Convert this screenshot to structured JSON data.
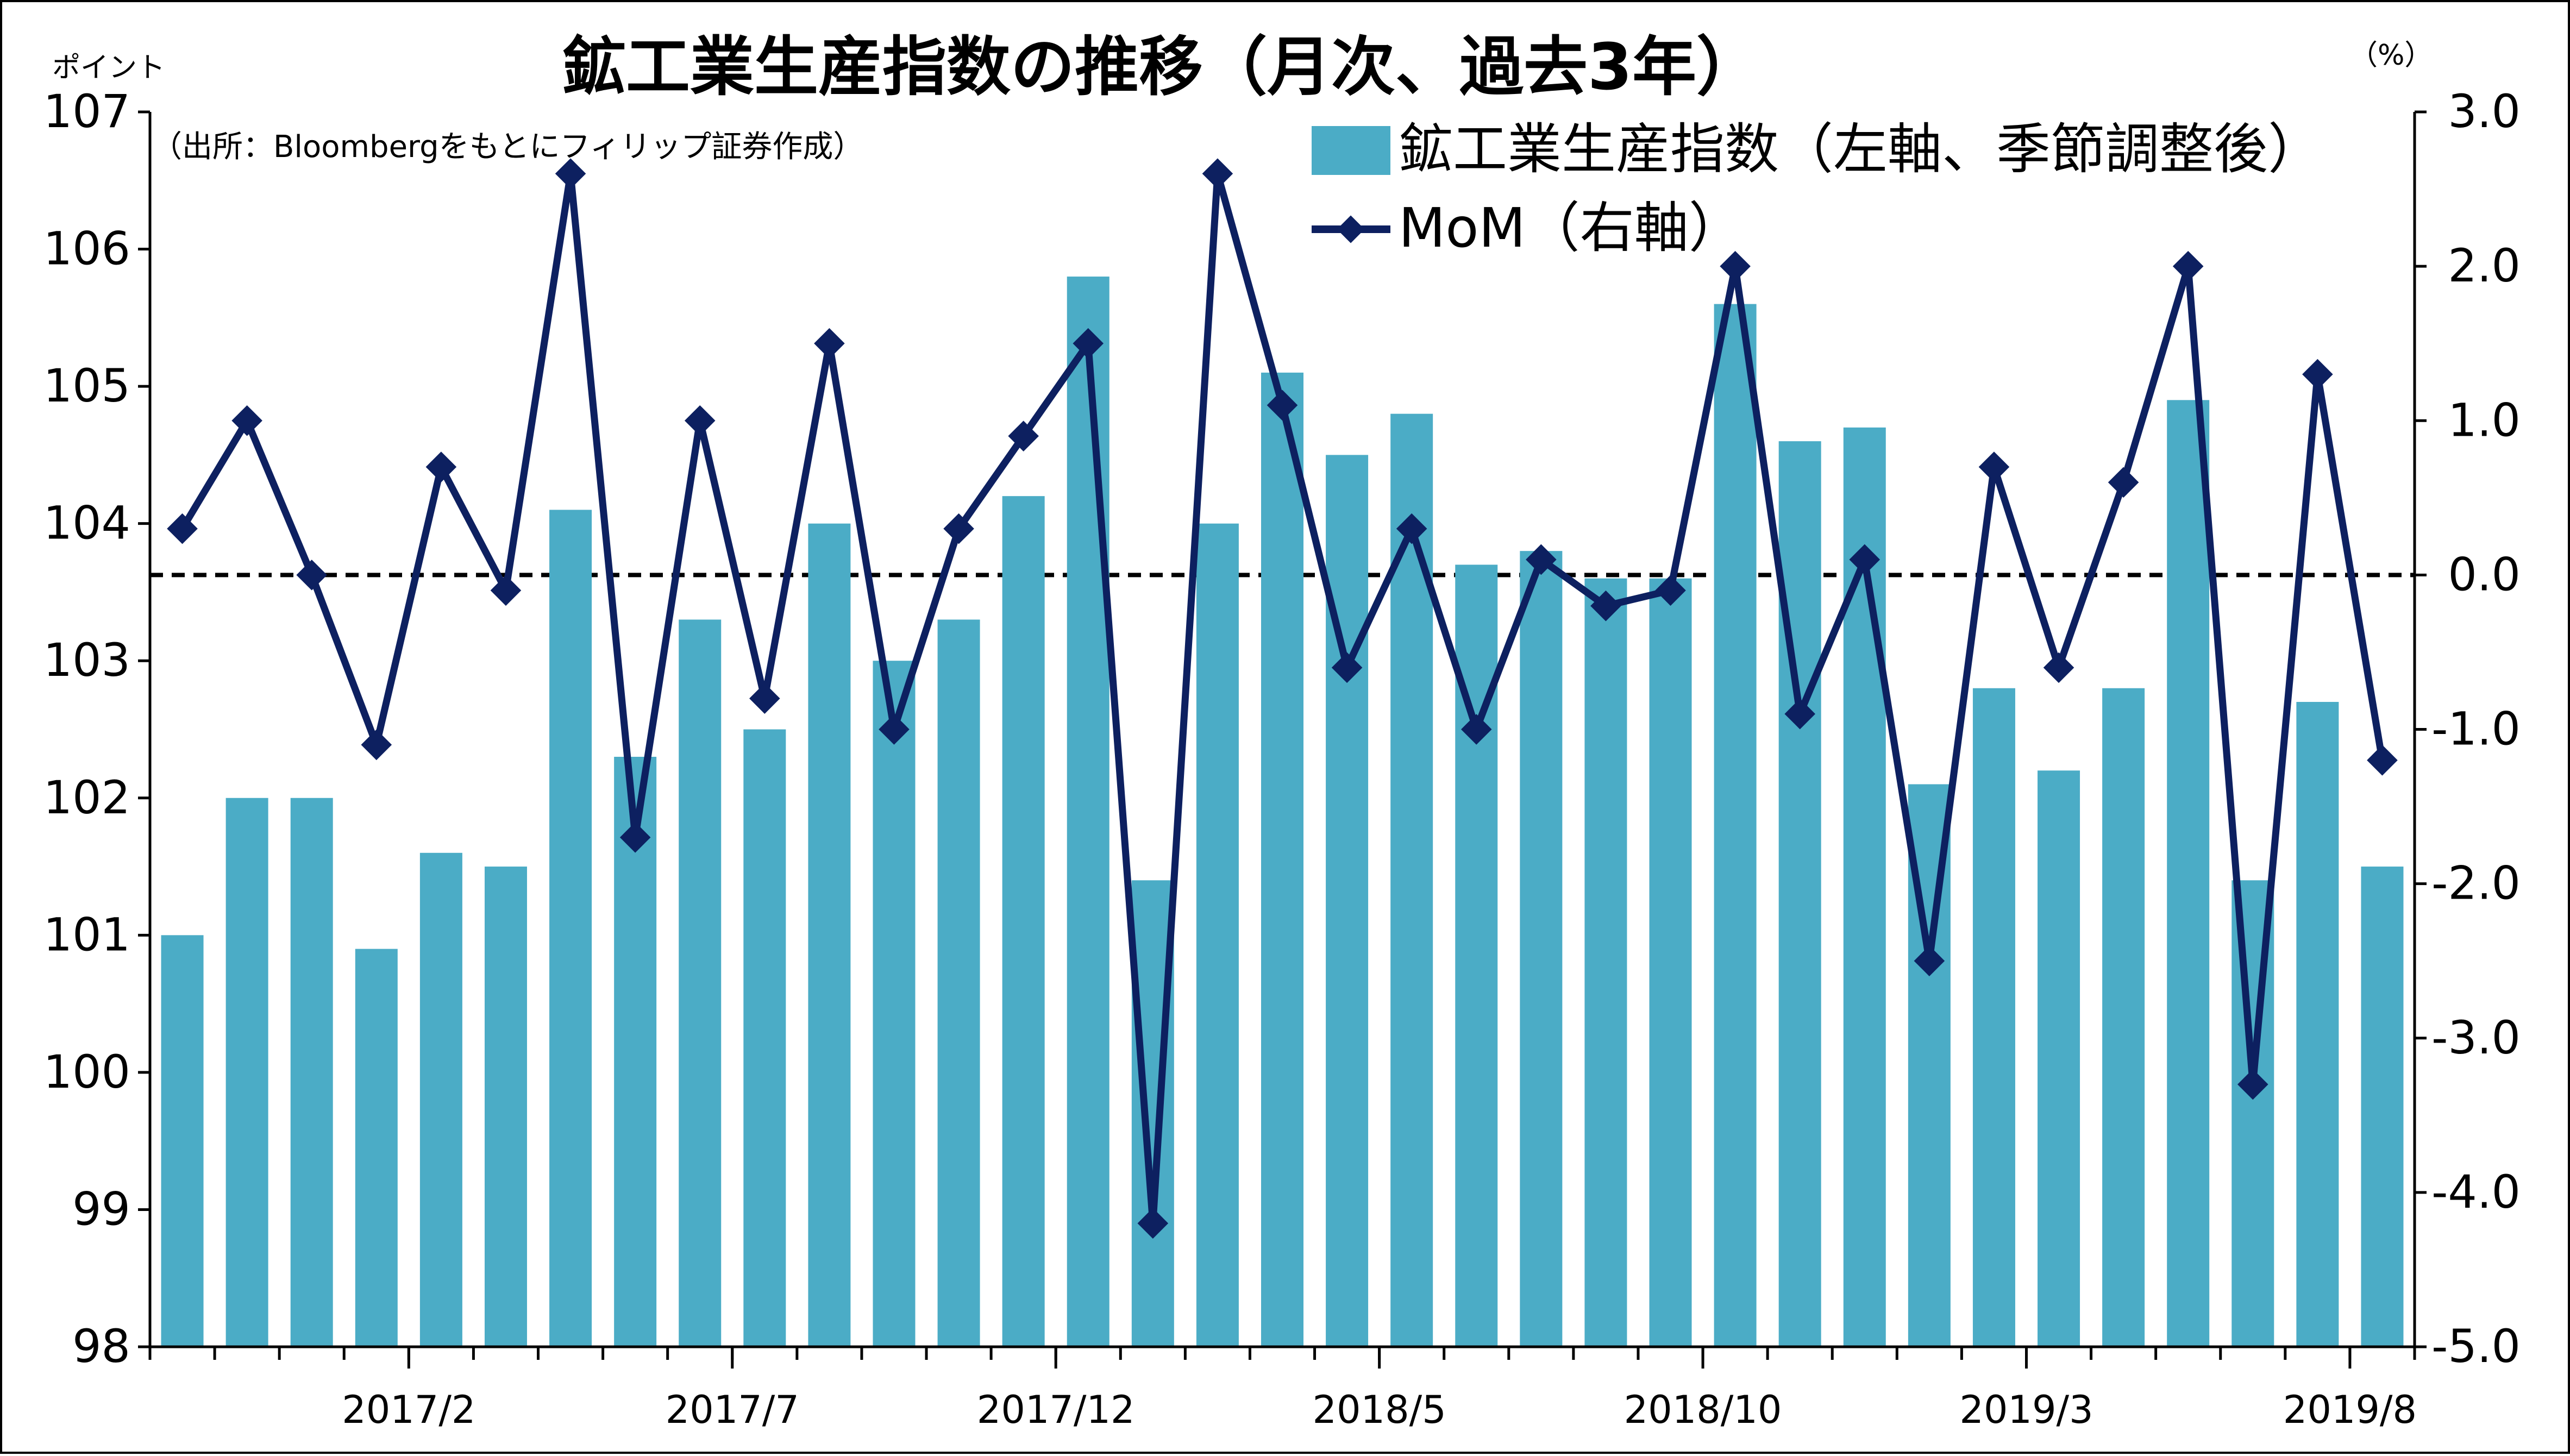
{
  "chart_data": {
    "type": "bar+line",
    "title": "鉱工業生産指数の推移（月次、過去3年）",
    "source_note": "（出所：Bloombergをもとにフィリップ証券作成）",
    "left_axis": {
      "unit_label": "ポイント",
      "ylim": [
        98,
        107
      ],
      "ticks": [
        "98",
        "99",
        "100",
        "101",
        "102",
        "103",
        "104",
        "105",
        "106",
        "107"
      ]
    },
    "right_axis": {
      "unit_label": "（%）",
      "ylim": [
        -5.0,
        3.0
      ],
      "ticks": [
        "-5.0",
        "-4.0",
        "-3.0",
        "-2.0",
        "-1.0",
        "0.0",
        "1.0",
        "2.0",
        "3.0"
      ],
      "negative_color": "#ff0000",
      "positive_color": "#000000"
    },
    "x_tick_labels": [
      {
        "index": 4,
        "label": "2017/2"
      },
      {
        "index": 9,
        "label": "2017/7"
      },
      {
        "index": 14,
        "label": "2017/12"
      },
      {
        "index": 19,
        "label": "2018/5"
      },
      {
        "index": 24,
        "label": "2018/10"
      },
      {
        "index": 29,
        "label": "2019/3"
      },
      {
        "index": 34,
        "label": "2019/8"
      }
    ],
    "series": [
      {
        "name": "鉱工業生産指数（左軸、季節調整後）",
        "type": "bar",
        "axis": "left",
        "color": "#4bacc6",
        "values": [
          101.0,
          102.0,
          102.0,
          100.9,
          101.6,
          101.5,
          104.1,
          102.3,
          103.3,
          102.5,
          104.0,
          103.0,
          103.3,
          104.2,
          105.8,
          101.4,
          104.0,
          105.1,
          104.5,
          104.8,
          103.7,
          103.8,
          103.6,
          103.6,
          105.6,
          104.6,
          104.7,
          102.1,
          102.8,
          102.2,
          102.8,
          104.9,
          101.4,
          102.7,
          101.5
        ]
      },
      {
        "name": "MoM（右軸）",
        "type": "line",
        "axis": "right",
        "color": "#0d2060",
        "values": [
          0.3,
          1.0,
          0.0,
          -1.1,
          0.7,
          -0.1,
          2.6,
          -1.7,
          1.0,
          -0.8,
          1.5,
          -1.0,
          0.3,
          0.9,
          1.5,
          -4.2,
          2.6,
          1.1,
          -0.6,
          0.3,
          -1.0,
          0.1,
          -0.2,
          -0.1,
          2.0,
          -0.9,
          0.1,
          -2.5,
          0.7,
          -0.6,
          0.6,
          2.0,
          -3.3,
          1.3,
          -1.2
        ]
      }
    ],
    "reference_line": {
      "axis": "right",
      "value": 0.0,
      "style": "dashed"
    },
    "legend_position": "top-right"
  }
}
